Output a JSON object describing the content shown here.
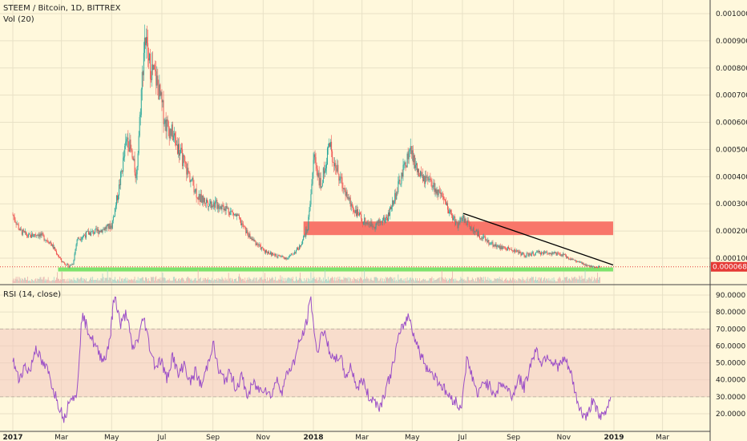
{
  "header": {
    "symbol_line": "STEEM / Bitcoin, 1D, BITTREX",
    "volume_line": "Vol (20)",
    "rsi_line": "RSI (14, close)"
  },
  "last_price_label": "0.00006832",
  "colors": {
    "background": "#fff8dc",
    "up_candle": "#26a69a",
    "down_candle": "#ef5350",
    "resistance_zone": "#f8766a",
    "support_line": "#7ee36c",
    "trendline": "#000000",
    "rsi_line": "#9b4fc7",
    "rsi_band": "#f3c6bf",
    "last_price": "#e53935"
  },
  "chart_data": [
    {
      "type": "candlestick",
      "title": "STEEM / Bitcoin, 1D, BITTREX",
      "y_ticks": [
        "0.00010000",
        "0.00020000",
        "0.00030000",
        "0.00040000",
        "0.00050000",
        "0.00060000",
        "0.00070000",
        "0.00080000",
        "0.00090000",
        "0.00100000"
      ],
      "ylim": [
        0.0,
        0.00105
      ],
      "x_ticks": [
        "2017",
        "Mar",
        "May",
        "Jul",
        "Sep",
        "Nov",
        "2018",
        "Mar",
        "May",
        "Jul",
        "Sep",
        "Nov",
        "2019",
        "Mar"
      ],
      "x_tick_dates": [
        "2017-01-01",
        "2017-03-01",
        "2017-05-01",
        "2017-07-01",
        "2017-09-01",
        "2017-11-01",
        "2018-01-01",
        "2018-03-01",
        "2018-05-01",
        "2018-07-01",
        "2018-09-01",
        "2018-11-01",
        "2019-01-01",
        "2019-03-01"
      ],
      "x_range": [
        "2017-01-01",
        "2019-04-01"
      ],
      "close_path": [
        [
          "2017-01-01",
          0.00026
        ],
        [
          "2017-01-10",
          0.0002
        ],
        [
          "2017-01-20",
          0.00018
        ],
        [
          "2017-02-01",
          0.00019
        ],
        [
          "2017-02-15",
          0.00016
        ],
        [
          "2017-03-01",
          9e-05
        ],
        [
          "2017-03-10",
          7e-05
        ],
        [
          "2017-03-15",
          8e-05
        ],
        [
          "2017-03-20",
          0.00017
        ],
        [
          "2017-04-01",
          0.00019
        ],
        [
          "2017-04-15",
          0.0002
        ],
        [
          "2017-05-01",
          0.00022
        ],
        [
          "2017-05-10",
          0.00036
        ],
        [
          "2017-05-20",
          0.00055
        ],
        [
          "2017-05-31",
          0.0004
        ],
        [
          "2017-06-10",
          0.00092
        ],
        [
          "2017-06-15",
          0.00082
        ],
        [
          "2017-06-25",
          0.00075
        ],
        [
          "2017-07-05",
          0.0006
        ],
        [
          "2017-07-15",
          0.00055
        ],
        [
          "2017-08-01",
          0.00042
        ],
        [
          "2017-08-15",
          0.00032
        ],
        [
          "2017-09-01",
          0.0003
        ],
        [
          "2017-09-15",
          0.00029
        ],
        [
          "2017-10-01",
          0.00025
        ],
        [
          "2017-10-15",
          0.00018
        ],
        [
          "2017-11-01",
          0.00013
        ],
        [
          "2017-11-15",
          0.00011
        ],
        [
          "2017-12-01",
          0.0001
        ],
        [
          "2017-12-15",
          0.00014
        ],
        [
          "2017-12-25",
          0.00021
        ],
        [
          "2018-01-02",
          0.00048
        ],
        [
          "2018-01-10",
          0.00036
        ],
        [
          "2018-01-20",
          0.00052
        ],
        [
          "2018-02-01",
          0.0004
        ],
        [
          "2018-02-15",
          0.0003
        ],
        [
          "2018-03-01",
          0.00024
        ],
        [
          "2018-03-15",
          0.00022
        ],
        [
          "2018-04-01",
          0.00025
        ],
        [
          "2018-04-15",
          0.00037
        ],
        [
          "2018-04-28",
          0.0005
        ],
        [
          "2018-05-10",
          0.0004
        ],
        [
          "2018-05-25",
          0.00037
        ],
        [
          "2018-06-10",
          0.0003
        ],
        [
          "2018-06-25",
          0.00022
        ],
        [
          "2018-07-01",
          0.00025
        ],
        [
          "2018-07-15",
          0.0002
        ],
        [
          "2018-08-01",
          0.00016
        ],
        [
          "2018-08-15",
          0.00014
        ],
        [
          "2018-09-01",
          0.00013
        ],
        [
          "2018-09-15",
          0.00011
        ],
        [
          "2018-10-01",
          0.00012
        ],
        [
          "2018-10-15",
          0.00012
        ],
        [
          "2018-11-01",
          0.00011
        ],
        [
          "2018-11-15",
          9e-05
        ],
        [
          "2018-12-01",
          7e-05
        ],
        [
          "2018-12-15",
          6.8e-05
        ]
      ],
      "resistance_zone": {
        "from": "2017-12-20",
        "to": "2018-12-31",
        "low": 0.000185,
        "high": 0.000235
      },
      "support_line": {
        "from": "2017-02-25",
        "to": "2018-12-31",
        "value": 6e-05
      },
      "trendline": [
        [
          "2018-07-02",
          0.000265
        ],
        [
          "2018-12-31",
          7.5e-05
        ]
      ],
      "last_price": 6.832e-05
    },
    {
      "type": "line",
      "title": "RSI (14, close)",
      "y_ticks": [
        "20.0000",
        "30.0000",
        "40.0000",
        "50.0000",
        "60.0000",
        "70.0000",
        "80.0000",
        "90.0000"
      ],
      "ylim": [
        12,
        93
      ],
      "band": [
        30,
        70
      ],
      "series": [
        {
          "points": [
            [
              "2017-01-01",
              52
            ],
            [
              "2017-01-08",
              40
            ],
            [
              "2017-01-15",
              48
            ],
            [
              "2017-01-22",
              45
            ],
            [
              "2017-01-29",
              60
            ],
            [
              "2017-02-05",
              50
            ],
            [
              "2017-02-12",
              46
            ],
            [
              "2017-02-19",
              35
            ],
            [
              "2017-02-26",
              25
            ],
            [
              "2017-03-05",
              17
            ],
            [
              "2017-03-12",
              32
            ],
            [
              "2017-03-19",
              28
            ],
            [
              "2017-03-26",
              78
            ],
            [
              "2017-04-02",
              70
            ],
            [
              "2017-04-09",
              62
            ],
            [
              "2017-04-16",
              55
            ],
            [
              "2017-04-23",
              52
            ],
            [
              "2017-04-30",
              68
            ],
            [
              "2017-05-05",
              90
            ],
            [
              "2017-05-12",
              72
            ],
            [
              "2017-05-19",
              80
            ],
            [
              "2017-05-26",
              58
            ],
            [
              "2017-06-02",
              64
            ],
            [
              "2017-06-09",
              77
            ],
            [
              "2017-06-16",
              60
            ],
            [
              "2017-06-23",
              48
            ],
            [
              "2017-06-30",
              52
            ],
            [
              "2017-07-07",
              40
            ],
            [
              "2017-07-14",
              55
            ],
            [
              "2017-07-21",
              42
            ],
            [
              "2017-07-28",
              50
            ],
            [
              "2017-08-04",
              38
            ],
            [
              "2017-08-11",
              45
            ],
            [
              "2017-08-18",
              36
            ],
            [
              "2017-08-25",
              48
            ],
            [
              "2017-09-01",
              62
            ],
            [
              "2017-09-08",
              45
            ],
            [
              "2017-09-15",
              40
            ],
            [
              "2017-09-22",
              44
            ],
            [
              "2017-09-29",
              35
            ],
            [
              "2017-10-06",
              42
            ],
            [
              "2017-10-13",
              30
            ],
            [
              "2017-10-20",
              38
            ],
            [
              "2017-10-27",
              34
            ],
            [
              "2017-11-03",
              36
            ],
            [
              "2017-11-10",
              30
            ],
            [
              "2017-11-17",
              40
            ],
            [
              "2017-11-24",
              34
            ],
            [
              "2017-12-01",
              45
            ],
            [
              "2017-12-08",
              50
            ],
            [
              "2017-12-15",
              62
            ],
            [
              "2017-12-22",
              70
            ],
            [
              "2017-12-29",
              88
            ],
            [
              "2018-01-05",
              55
            ],
            [
              "2018-01-12",
              70
            ],
            [
              "2018-01-19",
              60
            ],
            [
              "2018-01-26",
              50
            ],
            [
              "2018-02-02",
              55
            ],
            [
              "2018-02-09",
              42
            ],
            [
              "2018-02-16",
              48
            ],
            [
              "2018-02-23",
              35
            ],
            [
              "2018-03-02",
              40
            ],
            [
              "2018-03-09",
              30
            ],
            [
              "2018-03-16",
              28
            ],
            [
              "2018-03-23",
              24
            ],
            [
              "2018-03-30",
              35
            ],
            [
              "2018-04-06",
              45
            ],
            [
              "2018-04-13",
              62
            ],
            [
              "2018-04-20",
              72
            ],
            [
              "2018-04-27",
              78
            ],
            [
              "2018-05-04",
              65
            ],
            [
              "2018-05-11",
              55
            ],
            [
              "2018-05-18",
              48
            ],
            [
              "2018-05-25",
              44
            ],
            [
              "2018-06-01",
              40
            ],
            [
              "2018-06-08",
              35
            ],
            [
              "2018-06-15",
              30
            ],
            [
              "2018-06-22",
              28
            ],
            [
              "2018-06-29",
              22
            ],
            [
              "2018-07-06",
              52
            ],
            [
              "2018-07-13",
              42
            ],
            [
              "2018-07-20",
              30
            ],
            [
              "2018-07-27",
              40
            ],
            [
              "2018-08-03",
              36
            ],
            [
              "2018-08-10",
              32
            ],
            [
              "2018-08-17",
              38
            ],
            [
              "2018-08-24",
              35
            ],
            [
              "2018-08-31",
              30
            ],
            [
              "2018-09-07",
              42
            ],
            [
              "2018-09-14",
              35
            ],
            [
              "2018-09-21",
              48
            ],
            [
              "2018-09-28",
              58
            ],
            [
              "2018-10-05",
              50
            ],
            [
              "2018-10-12",
              55
            ],
            [
              "2018-10-19",
              50
            ],
            [
              "2018-10-26",
              48
            ],
            [
              "2018-11-02",
              52
            ],
            [
              "2018-11-09",
              45
            ],
            [
              "2018-11-16",
              30
            ],
            [
              "2018-11-23",
              20
            ],
            [
              "2018-11-30",
              18
            ],
            [
              "2018-12-07",
              30
            ],
            [
              "2018-12-14",
              17
            ],
            [
              "2018-12-21",
              20
            ],
            [
              "2018-12-28",
              30
            ]
          ]
        }
      ]
    }
  ]
}
